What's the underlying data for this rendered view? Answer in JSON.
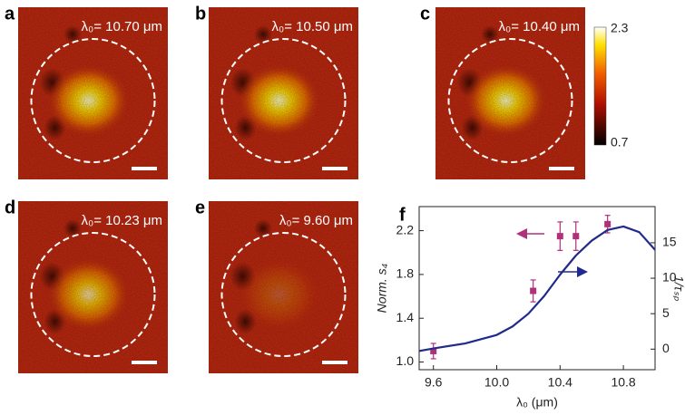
{
  "panels": [
    {
      "letter": "a",
      "label": "λ₀= 10.70 μm"
    },
    {
      "letter": "b",
      "label": "λ₀= 10.50 μm"
    },
    {
      "letter": "c",
      "label": "λ₀= 10.40 μm"
    },
    {
      "letter": "d",
      "label": "λ₀= 10.23 μm"
    },
    {
      "letter": "e",
      "label": "λ₀= 9.60 μm"
    }
  ],
  "colorbar": {
    "max": 2.3,
    "min": 0.7
  },
  "chart_data": {
    "type": "scatter",
    "letter": "f",
    "x_label": "λ₀ (μm)",
    "y_label": "Norm. s₄",
    "y2_label": "1/τₛₚ",
    "xlim": [
      9.51,
      11.0
    ],
    "xticks": [
      9.6,
      {
        "value": 10,
        "label": "10.0"
      },
      10.4,
      10.8
    ],
    "ylim": [
      0.93,
      2.42
    ],
    "yticks": [
      {
        "value": 1,
        "label": "1.0"
      },
      1.4,
      1.8,
      2.2
    ],
    "y2lim": [
      -2.9,
      20.1
    ],
    "y2ticks": [
      0,
      5,
      10,
      15
    ],
    "series": [
      {
        "color": "#b0307a",
        "x": [
          9.6,
          10.23,
          10.4,
          10.5,
          10.7
        ],
        "values": [
          1.1,
          1.65,
          2.15,
          2.15,
          2.26
        ],
        "errors": [
          0.07,
          0.1,
          0.13,
          0.13,
          0.08
        ]
      },
      {
        "type": "line",
        "axis": "y2",
        "color": "#1f2a8c",
        "x": [
          9.5,
          9.6,
          9.8,
          10.0,
          10.1,
          10.2,
          10.3,
          10.4,
          10.5,
          10.6,
          10.7,
          10.8,
          10.9,
          11.0
        ],
        "values": [
          -0.3,
          0.1,
          0.8,
          2.0,
          3.2,
          5.0,
          7.5,
          10.5,
          13.2,
          15.3,
          16.8,
          17.3,
          16.5,
          14.0
        ]
      }
    ]
  }
}
